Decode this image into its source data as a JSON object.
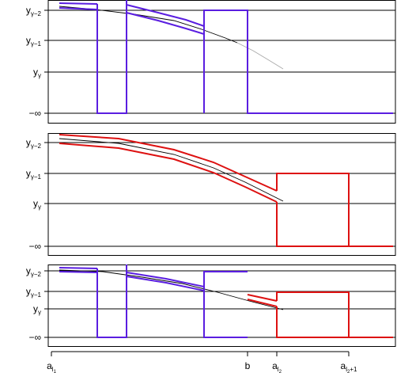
{
  "chart_data": [
    {
      "type": "line",
      "panel": "top",
      "y_levels": [
        {
          "base": "y",
          "sub": "γ−2"
        },
        {
          "base": "y",
          "sub": "γ−1"
        },
        {
          "base": "y",
          "sub": "γ"
        },
        {
          "base": "",
          "sub": "",
          "text": "−∞"
        }
      ],
      "curve_color": "#000000",
      "curve_faded_color": "#aaaaaa",
      "step_color": "#5a1ee0"
    },
    {
      "type": "line",
      "panel": "middle",
      "y_levels": [
        {
          "base": "y",
          "sub": "γ−2"
        },
        {
          "base": "y",
          "sub": "γ−1"
        },
        {
          "base": "y",
          "sub": "γ"
        },
        {
          "base": "",
          "sub": "",
          "text": "−∞"
        }
      ],
      "curve_color": "#000000",
      "step_color": "#dd1111"
    },
    {
      "type": "line",
      "panel": "bottom",
      "y_levels": [
        {
          "base": "y",
          "sub": "γ−2"
        },
        {
          "base": "y",
          "sub": "γ−1"
        },
        {
          "base": "y",
          "sub": "γ"
        },
        {
          "base": "",
          "sub": "",
          "text": "−∞"
        }
      ],
      "curve_color": "#000000",
      "step_colors": [
        "#5a1ee0",
        "#dd1111"
      ]
    }
  ],
  "x_axis": {
    "ticks": [
      {
        "id": "a_l1",
        "base": "a",
        "sub": "l",
        "subsub": "1",
        "extra": ""
      },
      {
        "id": "b",
        "base": "b",
        "sub": "",
        "subsub": "",
        "extra": ""
      },
      {
        "id": "a_l2",
        "base": "a",
        "sub": "l",
        "subsub": "2",
        "extra": ""
      },
      {
        "id": "a_l2p1",
        "base": "a",
        "sub": "l",
        "subsub": "2",
        "extra": "+1"
      }
    ]
  }
}
